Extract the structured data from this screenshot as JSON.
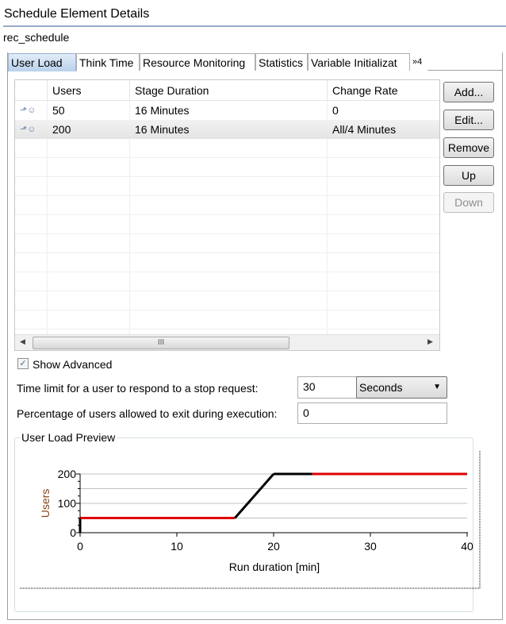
{
  "header": {
    "title": "Schedule Element Details",
    "subtitle": "rec_schedule"
  },
  "tabs": [
    {
      "label": "User Load",
      "selected": true
    },
    {
      "label": "Think Time"
    },
    {
      "label": "Resource Monitoring"
    },
    {
      "label": "Statistics"
    },
    {
      "label": "Variable Initializat"
    },
    {
      "label": "»4"
    }
  ],
  "table": {
    "columns": [
      "",
      "Users",
      "Stage Duration",
      "Change Rate"
    ],
    "rows": [
      {
        "icon": "user-stage-icon",
        "users": "50",
        "duration": "16 Minutes",
        "rate": "0"
      },
      {
        "icon": "user-stage-icon",
        "users": "200",
        "duration": "16 Minutes",
        "rate": "All/4 Minutes"
      }
    ],
    "scroll_grip": "III"
  },
  "buttons": {
    "add": "Add...",
    "edit": "Edit...",
    "remove": "Remove",
    "up": "Up",
    "down": "Down"
  },
  "advanced": {
    "label": "Show Advanced",
    "checked": true
  },
  "stop_time": {
    "label": "Time limit for a user to respond to a stop request:",
    "value": "30",
    "unit": "Seconds"
  },
  "exit_pct": {
    "label": "Percentage of users allowed to exit during execution:",
    "value": "0"
  },
  "preview": {
    "label": "User Load Preview"
  },
  "chart_data": {
    "type": "line",
    "xlabel": "Run duration [min]",
    "ylabel": "Users",
    "xlim": [
      0,
      40
    ],
    "ylim": [
      0,
      200
    ],
    "xticks": [
      "0",
      "10",
      "20",
      "30",
      "40"
    ],
    "yticks": [
      "0",
      "100",
      "200"
    ],
    "grid": true,
    "colors": {
      "steady": "#e00000",
      "ramp": "#000000",
      "ylabel": "#8b4513"
    },
    "segments": [
      {
        "kind": "ramp",
        "points": [
          [
            0,
            0
          ],
          [
            0,
            50
          ]
        ]
      },
      {
        "kind": "steady",
        "points": [
          [
            0,
            50
          ],
          [
            16,
            50
          ]
        ]
      },
      {
        "kind": "ramp",
        "points": [
          [
            16,
            50
          ],
          [
            20,
            200
          ]
        ]
      },
      {
        "kind": "ramp",
        "points": [
          [
            20,
            200
          ],
          [
            24,
            200
          ]
        ]
      },
      {
        "kind": "steady",
        "points": [
          [
            24,
            200
          ],
          [
            40,
            200
          ]
        ]
      }
    ]
  }
}
